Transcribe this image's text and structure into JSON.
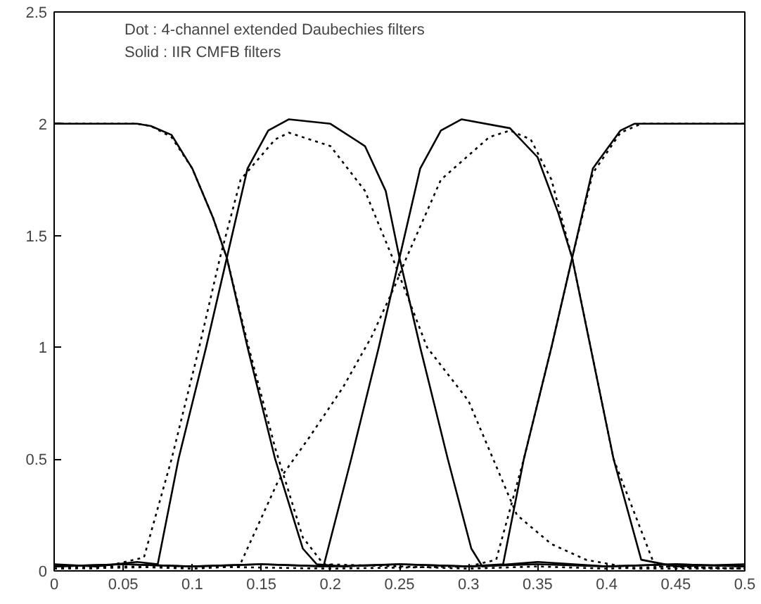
{
  "chart_data": {
    "type": "line",
    "xlim": [
      0,
      0.5
    ],
    "ylim": [
      0,
      2.5
    ],
    "xticks": [
      0,
      0.05,
      0.1,
      0.15,
      0.2,
      0.25,
      0.3,
      0.35,
      0.4,
      0.45,
      0.5
    ],
    "yticks": [
      0,
      0.5,
      1,
      1.5,
      2,
      2.5
    ],
    "grid": false,
    "annotations": [
      "Dot : 4-channel extended Daubechies filters",
      "Solid : IIR CMFB filters"
    ],
    "series": [
      {
        "color": "#000000",
        "line_style": "solid",
        "x": [
          0,
          0.03,
          0.06,
          0.07,
          0.085,
          0.1,
          0.115,
          0.125,
          0.14,
          0.16,
          0.18,
          0.19,
          0.21,
          0.25,
          0.3,
          0.35,
          0.4,
          0.45,
          0.5
        ],
        "values": [
          2,
          2,
          2,
          1.99,
          1.95,
          1.8,
          1.58,
          1.4,
          1.0,
          0.5,
          0.1,
          0.03,
          0.02,
          0.03,
          0.02,
          0.03,
          0.02,
          0.03,
          0.02
        ]
      },
      {
        "color": "#000000",
        "line_style": "solid",
        "x": [
          0,
          0.03,
          0.06,
          0.075,
          0.09,
          0.11,
          0.125,
          0.14,
          0.155,
          0.17,
          0.2,
          0.225,
          0.24,
          0.25,
          0.265,
          0.285,
          0.302,
          0.31,
          0.35,
          0.4,
          0.45,
          0.5
        ],
        "values": [
          0.03,
          0.02,
          0.04,
          0.03,
          0.5,
          1.0,
          1.4,
          1.8,
          1.97,
          2.02,
          2.0,
          1.9,
          1.7,
          1.4,
          1.0,
          0.5,
          0.1,
          0.02,
          0.04,
          0.02,
          0.03,
          0.02
        ]
      },
      {
        "color": "#000000",
        "line_style": "solid",
        "x": [
          0,
          0.05,
          0.1,
          0.15,
          0.195,
          0.215,
          0.235,
          0.25,
          0.265,
          0.28,
          0.295,
          0.33,
          0.35,
          0.365,
          0.375,
          0.39,
          0.405,
          0.425,
          0.45,
          0.5
        ],
        "values": [
          0.02,
          0.03,
          0.02,
          0.03,
          0.02,
          0.5,
          1.0,
          1.4,
          1.8,
          1.97,
          2.02,
          1.98,
          1.85,
          1.6,
          1.4,
          0.95,
          0.5,
          0.05,
          0.02,
          0.03
        ]
      },
      {
        "color": "#000000",
        "line_style": "solid",
        "x": [
          0,
          0.05,
          0.1,
          0.15,
          0.2,
          0.25,
          0.3,
          0.325,
          0.34,
          0.36,
          0.375,
          0.39,
          0.41,
          0.42,
          0.45,
          0.5
        ],
        "values": [
          0.02,
          0.03,
          0.02,
          0.03,
          0.02,
          0.03,
          0.02,
          0.03,
          0.5,
          1.0,
          1.4,
          1.8,
          1.97,
          2.0,
          2.0,
          2.0
        ]
      },
      {
        "color": "#000000",
        "line_style": "dotted",
        "x": [
          0,
          0.03,
          0.06,
          0.07,
          0.085,
          0.1,
          0.115,
          0.125,
          0.14,
          0.16,
          0.18,
          0.195,
          0.25,
          0.3,
          0.35,
          0.4,
          0.45,
          0.5
        ],
        "values": [
          2,
          2,
          2,
          1.99,
          1.94,
          1.8,
          1.58,
          1.4,
          1.02,
          0.55,
          0.15,
          0.03,
          0.02,
          0.01,
          0.02,
          0.01,
          0.02,
          0.01
        ]
      },
      {
        "color": "#000000",
        "line_style": "dotted",
        "x": [
          0,
          0.03,
          0.065,
          0.085,
          0.105,
          0.12,
          0.135,
          0.16,
          0.17,
          0.2,
          0.225,
          0.245,
          0.27,
          0.3,
          0.335,
          0.36,
          0.385,
          0.42,
          0.5
        ],
        "values": [
          0.02,
          0.01,
          0.06,
          0.5,
          1.0,
          1.4,
          1.75,
          1.93,
          1.96,
          1.9,
          1.7,
          1.4,
          1.0,
          0.76,
          0.25,
          0.12,
          0.05,
          0.01,
          0.01
        ]
      },
      {
        "color": "#000000",
        "line_style": "dotted",
        "x": [
          0,
          0.05,
          0.1,
          0.134,
          0.162,
          0.185,
          0.209,
          0.23,
          0.247,
          0.255,
          0.28,
          0.315,
          0.33,
          0.345,
          0.36,
          0.375,
          0.405,
          0.435,
          0.5
        ],
        "values": [
          0.01,
          0.02,
          0.01,
          0.02,
          0.4,
          0.6,
          0.82,
          1.05,
          1.28,
          1.4,
          1.75,
          1.94,
          1.97,
          1.93,
          1.75,
          1.4,
          0.5,
          0.02,
          0.01
        ]
      },
      {
        "color": "#000000",
        "line_style": "dotted",
        "x": [
          0,
          0.1,
          0.2,
          0.3,
          0.32,
          0.34,
          0.36,
          0.375,
          0.39,
          0.41,
          0.425,
          0.45,
          0.5
        ],
        "values": [
          0.01,
          0.02,
          0.01,
          0.02,
          0.05,
          0.5,
          1.0,
          1.4,
          1.78,
          1.96,
          2.0,
          2.0,
          2.0
        ]
      }
    ]
  }
}
